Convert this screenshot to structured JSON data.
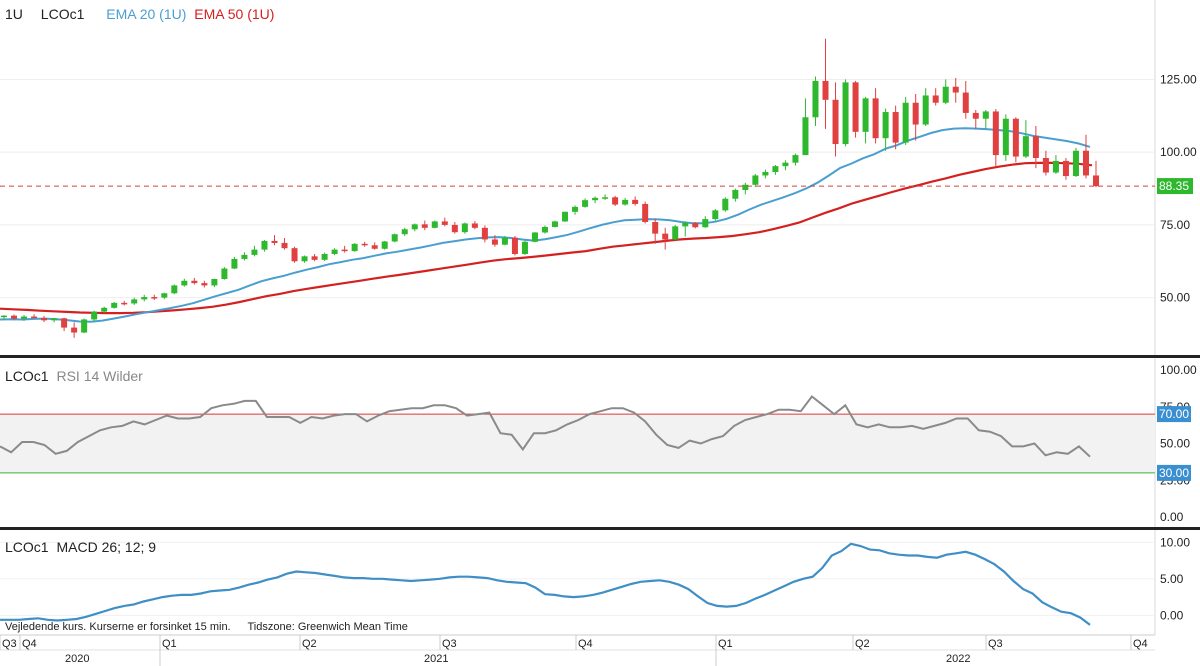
{
  "header": {
    "interval": "1U",
    "symbol": "LCOc1",
    "ema20_label": "EMA 20  (1U)",
    "ema50_label": "EMA 50  (1U)"
  },
  "rsi_header": {
    "symbol": "LCOc1",
    "label": "RSI 14 Wilder"
  },
  "macd_header": {
    "symbol": "LCOc1",
    "label": "MACD 26; 12; 9"
  },
  "footer_note": {
    "delay": "Vejledende kurs. Kurserne er forsinket 15 min.",
    "timezone": "Tidszone: Greenwich Mean Time"
  },
  "colors": {
    "up": "#2db82d",
    "down": "#e04040",
    "ema20": "#4a9fd0",
    "ema50": "#d42020",
    "rsi": "#8a8a8a",
    "macd": "#3f8fc6",
    "overbought": "#d83a3a",
    "oversold": "#3ab33a",
    "last_price": "#2db82d",
    "level_badge": "#3a8fd0"
  },
  "chart_data": [
    {
      "type": "candlestick",
      "title": "LCOc1",
      "interval": "1U",
      "ylim": [
        32,
        142
      ],
      "yticks": [
        "125.00",
        "100.00",
        "75.00",
        "50.00"
      ],
      "last_price": "88.35",
      "candles": [
        [
          43.5,
          44.0,
          42.4,
          43.8
        ],
        [
          43.8,
          44.2,
          42.2,
          42.8
        ],
        [
          42.8,
          44.0,
          42.0,
          43.5
        ],
        [
          43.5,
          44.3,
          42.9,
          43.0
        ],
        [
          43.0,
          43.7,
          41.6,
          42.2
        ],
        [
          42.2,
          43.1,
          41.5,
          42.9
        ],
        [
          42.9,
          43.1,
          38.5,
          39.7
        ],
        [
          39.7,
          41.5,
          36.2,
          38.0
        ],
        [
          38.0,
          42.8,
          37.8,
          42.5
        ],
        [
          42.5,
          45.5,
          41.9,
          45.2
        ],
        [
          45.2,
          46.9,
          44.8,
          46.5
        ],
        [
          46.5,
          48.5,
          46.2,
          48.2
        ],
        [
          48.2,
          48.9,
          47.3,
          48.0
        ],
        [
          48.0,
          50.0,
          47.5,
          49.4
        ],
        [
          49.4,
          51.0,
          48.7,
          50.2
        ],
        [
          50.2,
          51.0,
          49.2,
          50.0
        ],
        [
          50.0,
          51.7,
          49.5,
          51.5
        ],
        [
          51.5,
          54.5,
          51.2,
          54.2
        ],
        [
          54.2,
          56.5,
          53.8,
          55.8
        ],
        [
          55.8,
          56.8,
          54.5,
          55.0
        ],
        [
          55.0,
          55.8,
          53.5,
          54.2
        ],
        [
          54.2,
          56.5,
          53.6,
          56.4
        ],
        [
          56.4,
          60.5,
          56.2,
          60.0
        ],
        [
          60.0,
          64.0,
          59.8,
          63.3
        ],
        [
          63.3,
          65.6,
          62.8,
          64.7
        ],
        [
          64.7,
          67.8,
          64.2,
          66.5
        ],
        [
          66.5,
          69.8,
          65.8,
          69.5
        ],
        [
          69.5,
          71.5,
          68.0,
          68.8
        ],
        [
          68.8,
          70.5,
          66.5,
          67.0
        ],
        [
          67.0,
          67.5,
          62.0,
          62.5
        ],
        [
          62.5,
          64.5,
          62.0,
          64.2
        ],
        [
          64.2,
          65.0,
          62.5,
          63.0
        ],
        [
          63.0,
          65.5,
          62.6,
          65.0
        ],
        [
          65.0,
          67.0,
          64.6,
          66.5
        ],
        [
          66.5,
          67.8,
          65.5,
          66.0
        ],
        [
          66.0,
          68.7,
          65.8,
          68.5
        ],
        [
          68.5,
          69.2,
          67.5,
          68.0
        ],
        [
          68.0,
          69.0,
          66.5,
          66.8
        ],
        [
          66.8,
          69.5,
          66.5,
          69.3
        ],
        [
          69.3,
          72.0,
          69.0,
          71.8
        ],
        [
          71.8,
          74.0,
          71.2,
          73.5
        ],
        [
          73.5,
          75.5,
          72.8,
          75.2
        ],
        [
          75.2,
          76.5,
          73.2,
          74.0
        ],
        [
          74.0,
          76.5,
          73.8,
          76.2
        ],
        [
          76.2,
          77.5,
          74.5,
          75.0
        ],
        [
          75.0,
          76.0,
          72.0,
          72.5
        ],
        [
          72.5,
          75.8,
          72.0,
          75.5
        ],
        [
          75.5,
          76.3,
          73.5,
          74.0
        ],
        [
          74.0,
          74.8,
          69.0,
          70.0
        ],
        [
          70.0,
          71.5,
          67.5,
          68.2
        ],
        [
          68.2,
          71.2,
          68.0,
          70.6
        ],
        [
          70.6,
          71.2,
          64.5,
          65.0
        ],
        [
          65.0,
          69.6,
          64.7,
          69.2
        ],
        [
          69.2,
          72.5,
          69.0,
          72.4
        ],
        [
          72.4,
          74.8,
          72.0,
          74.3
        ],
        [
          74.3,
          76.5,
          74.1,
          76.2
        ],
        [
          76.2,
          79.6,
          76.0,
          79.5
        ],
        [
          79.5,
          81.7,
          78.5,
          81.2
        ],
        [
          81.2,
          84.1,
          80.9,
          83.5
        ],
        [
          83.5,
          84.8,
          82.5,
          84.3
        ],
        [
          84.3,
          85.5,
          83.6,
          84.5
        ],
        [
          84.5,
          85.0,
          81.5,
          82.0
        ],
        [
          82.0,
          84.3,
          81.6,
          83.6
        ],
        [
          83.6,
          84.8,
          81.6,
          82.2
        ],
        [
          82.2,
          83.0,
          75.5,
          76.0
        ],
        [
          76.0,
          77.2,
          68.5,
          72.0
        ],
        [
          72.0,
          74.0,
          66.5,
          70.0
        ],
        [
          70.0,
          75.0,
          69.8,
          74.5
        ],
        [
          74.5,
          76.2,
          71.0,
          75.7
        ],
        [
          75.7,
          76.0,
          73.8,
          74.2
        ],
        [
          74.2,
          78.0,
          74.0,
          77.0
        ],
        [
          77.0,
          80.5,
          76.5,
          80.0
        ],
        [
          80.0,
          84.5,
          79.5,
          84.0
        ],
        [
          84.0,
          87.5,
          83.0,
          87.0
        ],
        [
          87.0,
          89.5,
          85.5,
          88.8
        ],
        [
          88.8,
          92.5,
          88.0,
          92.0
        ],
        [
          92.0,
          94.0,
          91.0,
          93.2
        ],
        [
          93.2,
          95.6,
          92.2,
          95.2
        ],
        [
          95.2,
          97.2,
          93.8,
          96.4
        ],
        [
          96.4,
          99.5,
          95.4,
          99.0
        ],
        [
          99.0,
          118.5,
          99.0,
          112.0
        ],
        [
          112.0,
          126.0,
          109.0,
          124.5
        ],
        [
          124.5,
          139.0,
          108.0,
          118.0
        ],
        [
          118.0,
          124.0,
          98.5,
          102.8
        ],
        [
          102.8,
          125.0,
          102.0,
          124.0
        ],
        [
          124.0,
          124.5,
          105.0,
          107.0
        ],
        [
          107.0,
          119.0,
          103.0,
          118.5
        ],
        [
          118.5,
          122.0,
          103.0,
          104.8
        ],
        [
          104.8,
          115.0,
          100.5,
          113.8
        ],
        [
          113.8,
          116.0,
          101.0,
          103.3
        ],
        [
          103.3,
          119.0,
          102.5,
          117.0
        ],
        [
          117.0,
          120.0,
          104.0,
          109.5
        ],
        [
          109.5,
          122.0,
          109.0,
          119.5
        ],
        [
          119.5,
          122.0,
          116.0,
          117.0
        ],
        [
          117.0,
          125.0,
          116.5,
          122.5
        ],
        [
          122.5,
          125.5,
          117.0,
          120.5
        ],
        [
          120.5,
          124.5,
          111.5,
          113.5
        ],
        [
          113.5,
          114.5,
          108.0,
          111.5
        ],
        [
          111.5,
          114.5,
          108.0,
          114.0
        ],
        [
          114.0,
          114.8,
          95.0,
          99.0
        ],
        [
          99.0,
          113.0,
          97.0,
          111.5
        ],
        [
          111.5,
          112.0,
          96.5,
          98.5
        ],
        [
          98.5,
          111.0,
          98.0,
          105.5
        ],
        [
          105.5,
          109.0,
          94.5,
          98.0
        ],
        [
          98.0,
          100.5,
          92.0,
          93.0
        ],
        [
          93.0,
          99.0,
          92.5,
          97.0
        ],
        [
          97.0,
          98.0,
          90.5,
          91.8
        ],
        [
          91.8,
          101.5,
          91.5,
          100.5
        ],
        [
          100.5,
          106.0,
          91.0,
          92.0
        ],
        [
          92.0,
          97.0,
          88.0,
          88.35
        ]
      ],
      "ema20": [
        42.5,
        42.6,
        42.5,
        42.7,
        42.8,
        42.6,
        42.2,
        41.8,
        41.7,
        42.1,
        42.8,
        43.5,
        44.3,
        45.0,
        45.7,
        46.4,
        47.2,
        48.1,
        49.3,
        50.5,
        51.6,
        52.7,
        54.2,
        55.6,
        56.6,
        57.5,
        58.6,
        59.6,
        60.5,
        61.5,
        62.2,
        63.0,
        63.6,
        64.4,
        65.2,
        65.8,
        66.5,
        67.2,
        68.0,
        68.8,
        69.4,
        70.0,
        70.4,
        70.7,
        70.8,
        70.5,
        70.0,
        69.6,
        70.1,
        70.8,
        71.6,
        72.7,
        73.9,
        75.0,
        75.9,
        76.6,
        76.8,
        77.0,
        76.9,
        76.6,
        76.0,
        75.6,
        75.6,
        76.1,
        77.1,
        78.5,
        80.3,
        81.9,
        83.2,
        84.5,
        85.9,
        87.5,
        89.5,
        92.0,
        94.6,
        96.1,
        97.9,
        99.3,
        101.2,
        102.4,
        104.0,
        105.3,
        106.6,
        107.6,
        108.1,
        108.2,
        108.1,
        107.9,
        107.6,
        107.2,
        106.5,
        105.6,
        105.0,
        104.4,
        103.8,
        103.0,
        101.8
      ],
      "ema50": [
        46.2,
        46.0,
        45.8,
        45.5,
        45.3,
        45.1,
        44.9,
        44.8,
        44.7,
        44.7,
        44.8,
        45.0,
        45.3,
        45.6,
        46.0,
        46.4,
        46.9,
        47.6,
        48.5,
        49.5,
        50.5,
        51.3,
        52.2,
        53.0,
        53.7,
        54.4,
        55.1,
        55.8,
        56.5,
        57.2,
        57.8,
        58.5,
        59.2,
        59.9,
        60.6,
        61.3,
        62.0,
        62.7,
        63.2,
        63.6,
        64.0,
        64.5,
        65.0,
        65.5,
        66.0,
        66.8,
        67.5,
        68.0,
        68.5,
        69.0,
        69.5,
        70.0,
        70.3,
        70.5,
        70.8,
        71.2,
        71.8,
        72.5,
        73.5,
        74.6,
        75.8,
        77.5,
        79.2,
        80.7,
        82.4,
        83.7,
        85.0,
        86.3,
        87.6,
        88.7,
        89.9,
        91.0,
        92.2,
        93.2,
        94.2,
        95.0,
        95.7,
        96.2,
        96.3,
        96.3,
        96.2,
        96.0,
        95.5
      ]
    },
    {
      "type": "line",
      "title": "RSI 14 Wilder",
      "ylim": [
        0,
        100
      ],
      "yticks": [
        "100.00",
        "75.00",
        "50.00",
        "25.00",
        "0.00"
      ],
      "levels": [
        "70.00",
        "30.00"
      ],
      "values": [
        48,
        44,
        51,
        51,
        49,
        43,
        45,
        51,
        55,
        59,
        61,
        62,
        65,
        63,
        66,
        69,
        67,
        67,
        68,
        74,
        76,
        77,
        79,
        79,
        68,
        68,
        68,
        64,
        68,
        67,
        69,
        70,
        70,
        65,
        69,
        72,
        73,
        74,
        74,
        76,
        76,
        74,
        69,
        70,
        71,
        57,
        56,
        46,
        57,
        57,
        59,
        63,
        66,
        70,
        72,
        74,
        74,
        71,
        65,
        56,
        49,
        47,
        52,
        50,
        53,
        55,
        62,
        66,
        68,
        70,
        73,
        73,
        72,
        82,
        76,
        70,
        76,
        63,
        61,
        63,
        61,
        61,
        62,
        60,
        62,
        64,
        67,
        67,
        59,
        58,
        55,
        48,
        48,
        50,
        42,
        44,
        43,
        48,
        41
      ]
    },
    {
      "type": "line",
      "title": "MACD 26; 12; 9",
      "ylim": [
        -2,
        11
      ],
      "yticks": [
        "10.00",
        "5.00",
        "0.00"
      ],
      "values": [
        -0.6,
        -0.6,
        -0.6,
        -0.5,
        -0.4,
        -0.6,
        -0.7,
        -0.6,
        -0.5,
        -0.2,
        0.2,
        0.6,
        1.0,
        1.3,
        1.5,
        1.9,
        2.2,
        2.5,
        2.7,
        2.8,
        2.8,
        3.0,
        3.3,
        3.4,
        3.5,
        3.8,
        4.2,
        4.5,
        4.9,
        5.2,
        5.7,
        6.0,
        5.9,
        5.8,
        5.6,
        5.4,
        5.2,
        5.1,
        5.1,
        5.0,
        5.0,
        4.9,
        4.8,
        4.7,
        4.8,
        4.9,
        5.0,
        5.2,
        5.3,
        5.3,
        5.2,
        5.1,
        4.8,
        4.6,
        4.5,
        4.4,
        3.8,
        2.9,
        2.8,
        2.6,
        2.5,
        2.6,
        2.8,
        3.1,
        3.5,
        3.9,
        4.3,
        4.6,
        4.7,
        4.8,
        4.6,
        4.2,
        3.6,
        2.6,
        1.7,
        1.3,
        1.2,
        1.3,
        1.7,
        2.3,
        2.8,
        3.4,
        4.0,
        4.6,
        5.0,
        5.3,
        6.5,
        8.2,
        8.8,
        9.8,
        9.5,
        9.0,
        8.9,
        8.5,
        8.3,
        8.2,
        8.2,
        8.0,
        7.9,
        8.3,
        8.5,
        8.7,
        8.3,
        7.7,
        7.0,
        6.0,
        4.7,
        3.6,
        3.0,
        1.8,
        1.1,
        0.5,
        0.3,
        -0.3,
        -1.3
      ]
    }
  ],
  "time_axis": {
    "quarters": [
      "Q3",
      "Q4",
      "Q1",
      "Q2",
      "Q3",
      "Q4",
      "Q1",
      "Q2",
      "Q3",
      "Q4"
    ],
    "years": [
      "2020",
      "2021",
      "2022"
    ]
  }
}
